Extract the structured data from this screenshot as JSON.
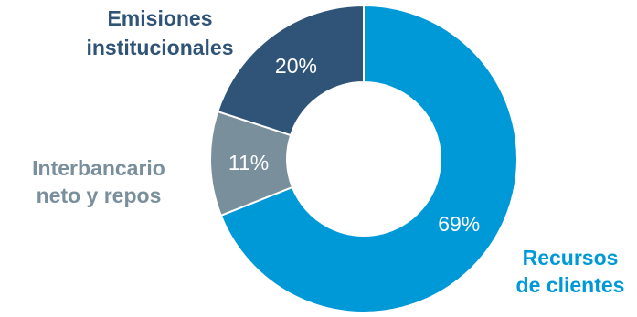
{
  "chart_data": {
    "type": "pie",
    "donut": true,
    "categories": [
      "Recursos de clientes",
      "Interbancario neto y repos",
      "Emisiones institucionales"
    ],
    "category_lines": [
      [
        "Recursos",
        "de clientes"
      ],
      [
        "Interbancario",
        "neto y repos"
      ],
      [
        "Emisiones",
        "institucionales"
      ]
    ],
    "values": [
      69,
      11,
      20
    ],
    "value_labels": [
      "69%",
      "11%",
      "20%"
    ],
    "colors": [
      "#0099d8",
      "#7a8f9c",
      "#2f5477"
    ],
    "label_colors": [
      "#0099d8",
      "#7a8f9c",
      "#2f5477"
    ],
    "start": "12 o'clock",
    "direction": "clockwise"
  }
}
